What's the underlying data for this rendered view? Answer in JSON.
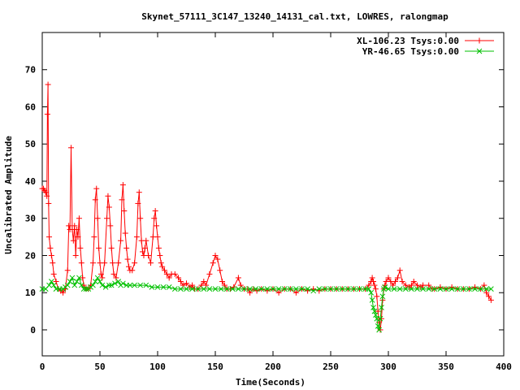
{
  "chart_data": {
    "type": "line",
    "title": "Skynet_57111_3C147_13240_14131_cal.txt, LOWRES, ralongmap",
    "xlabel": "Time(Seconds)",
    "ylabel": "Uncalibrated Amplitude",
    "xlim": [
      0,
      400
    ],
    "ylim": [
      -7,
      80
    ],
    "xticks": [
      0,
      50,
      100,
      150,
      200,
      250,
      300,
      350,
      400
    ],
    "yticks": [
      0,
      10,
      20,
      30,
      40,
      50,
      60,
      70
    ],
    "grid": false,
    "legend_position": "top-right",
    "series": [
      {
        "name": "XL-106.23 Tsys:0.00",
        "color": "#ff0000",
        "marker": "plus",
        "points": [
          [
            0,
            38
          ],
          [
            1,
            38
          ],
          [
            2,
            37.5
          ],
          [
            3,
            37
          ],
          [
            4,
            36
          ],
          [
            4.5,
            58
          ],
          [
            5,
            66
          ],
          [
            5.5,
            34
          ],
          [
            6,
            25
          ],
          [
            7,
            22
          ],
          [
            8,
            20
          ],
          [
            9,
            18
          ],
          [
            10,
            15
          ],
          [
            12,
            13
          ],
          [
            14,
            11
          ],
          [
            16,
            10.5
          ],
          [
            18,
            10
          ],
          [
            20,
            11
          ],
          [
            22,
            16
          ],
          [
            23,
            28
          ],
          [
            24,
            27
          ],
          [
            25,
            49
          ],
          [
            26,
            27
          ],
          [
            27,
            24
          ],
          [
            28,
            28
          ],
          [
            29,
            20
          ],
          [
            30,
            27
          ],
          [
            31,
            25
          ],
          [
            32,
            30
          ],
          [
            33,
            22
          ],
          [
            34,
            18
          ],
          [
            35,
            14
          ],
          [
            36,
            12
          ],
          [
            38,
            11
          ],
          [
            40,
            11
          ],
          [
            42,
            12
          ],
          [
            44,
            18
          ],
          [
            45,
            25
          ],
          [
            46,
            35
          ],
          [
            47,
            38
          ],
          [
            48,
            30
          ],
          [
            49,
            22
          ],
          [
            50,
            18
          ],
          [
            51,
            15
          ],
          [
            52,
            14
          ],
          [
            54,
            18
          ],
          [
            56,
            30
          ],
          [
            57,
            36
          ],
          [
            58,
            33
          ],
          [
            59,
            28
          ],
          [
            60,
            22
          ],
          [
            61,
            18
          ],
          [
            62,
            15
          ],
          [
            64,
            14
          ],
          [
            66,
            18
          ],
          [
            68,
            24
          ],
          [
            69,
            35
          ],
          [
            70,
            39
          ],
          [
            71,
            32
          ],
          [
            72,
            26
          ],
          [
            73,
            22
          ],
          [
            74,
            19
          ],
          [
            75,
            17
          ],
          [
            76,
            16
          ],
          [
            78,
            16
          ],
          [
            80,
            18
          ],
          [
            82,
            25
          ],
          [
            83,
            34
          ],
          [
            84,
            37
          ],
          [
            85,
            30
          ],
          [
            86,
            24
          ],
          [
            87,
            21
          ],
          [
            88,
            20
          ],
          [
            89,
            22
          ],
          [
            90,
            24
          ],
          [
            92,
            20
          ],
          [
            94,
            18
          ],
          [
            96,
            25
          ],
          [
            97,
            30
          ],
          [
            98,
            32
          ],
          [
            99,
            28
          ],
          [
            100,
            25
          ],
          [
            101,
            22
          ],
          [
            102,
            20
          ],
          [
            103,
            18
          ],
          [
            104,
            17
          ],
          [
            106,
            16
          ],
          [
            108,
            15
          ],
          [
            110,
            14
          ],
          [
            112,
            15
          ],
          [
            115,
            15
          ],
          [
            118,
            14
          ],
          [
            120,
            13
          ],
          [
            122,
            12
          ],
          [
            125,
            12.5
          ],
          [
            128,
            11.5
          ],
          [
            130,
            12
          ],
          [
            132,
            11
          ],
          [
            135,
            11
          ],
          [
            138,
            12
          ],
          [
            140,
            13
          ],
          [
            142,
            12
          ],
          [
            145,
            15
          ],
          [
            148,
            18
          ],
          [
            150,
            20
          ],
          [
            152,
            19
          ],
          [
            154,
            16
          ],
          [
            156,
            13
          ],
          [
            158,
            12
          ],
          [
            160,
            11
          ],
          [
            163,
            11
          ],
          [
            166,
            11.5
          ],
          [
            170,
            14
          ],
          [
            172,
            12
          ],
          [
            175,
            11
          ],
          [
            178,
            11
          ],
          [
            180,
            10
          ],
          [
            183,
            11
          ],
          [
            186,
            10.5
          ],
          [
            190,
            11
          ],
          [
            195,
            10.5
          ],
          [
            200,
            11
          ],
          [
            205,
            10
          ],
          [
            210,
            11
          ],
          [
            215,
            11
          ],
          [
            220,
            10
          ],
          [
            225,
            11
          ],
          [
            230,
            10.5
          ],
          [
            235,
            11
          ],
          [
            240,
            10.5
          ],
          [
            245,
            11
          ],
          [
            250,
            11
          ],
          [
            255,
            11
          ],
          [
            260,
            11
          ],
          [
            265,
            11
          ],
          [
            270,
            11
          ],
          [
            275,
            11
          ],
          [
            280,
            11
          ],
          [
            283,
            12
          ],
          [
            285,
            13
          ],
          [
            286,
            14
          ],
          [
            287,
            13
          ],
          [
            288,
            12
          ],
          [
            289,
            11
          ],
          [
            290,
            9
          ],
          [
            291,
            5
          ],
          [
            292,
            2
          ],
          [
            293,
            0
          ],
          [
            294,
            3
          ],
          [
            295,
            8
          ],
          [
            296,
            11
          ],
          [
            297,
            12
          ],
          [
            298,
            13
          ],
          [
            300,
            14
          ],
          [
            302,
            13
          ],
          [
            304,
            12
          ],
          [
            306,
            13
          ],
          [
            308,
            14
          ],
          [
            310,
            16
          ],
          [
            312,
            13
          ],
          [
            315,
            12
          ],
          [
            318,
            11.5
          ],
          [
            320,
            12
          ],
          [
            322,
            13
          ],
          [
            325,
            12
          ],
          [
            328,
            11.5
          ],
          [
            330,
            12
          ],
          [
            335,
            12
          ],
          [
            338,
            11
          ],
          [
            340,
            11
          ],
          [
            345,
            11.5
          ],
          [
            350,
            11
          ],
          [
            355,
            11.5
          ],
          [
            360,
            11
          ],
          [
            365,
            11
          ],
          [
            370,
            11
          ],
          [
            375,
            11.5
          ],
          [
            380,
            11
          ],
          [
            383,
            12
          ],
          [
            385,
            10
          ],
          [
            387,
            9
          ],
          [
            389,
            8
          ]
        ]
      },
      {
        "name": "YR-46.65 Tsys:0.00",
        "color": "#00c000",
        "marker": "cross",
        "points": [
          [
            0,
            11
          ],
          [
            3,
            11
          ],
          [
            6,
            12
          ],
          [
            8,
            13
          ],
          [
            10,
            12
          ],
          [
            12,
            11
          ],
          [
            15,
            11
          ],
          [
            18,
            11
          ],
          [
            20,
            11.5
          ],
          [
            22,
            12
          ],
          [
            24,
            13
          ],
          [
            26,
            14
          ],
          [
            28,
            12
          ],
          [
            30,
            13
          ],
          [
            32,
            14
          ],
          [
            34,
            12
          ],
          [
            36,
            11
          ],
          [
            38,
            11
          ],
          [
            40,
            11
          ],
          [
            42,
            11.5
          ],
          [
            44,
            12
          ],
          [
            46,
            13
          ],
          [
            48,
            14
          ],
          [
            50,
            13
          ],
          [
            52,
            12
          ],
          [
            55,
            11.5
          ],
          [
            58,
            12
          ],
          [
            60,
            12
          ],
          [
            63,
            12.5
          ],
          [
            66,
            13
          ],
          [
            68,
            12
          ],
          [
            70,
            12.5
          ],
          [
            73,
            12
          ],
          [
            76,
            12
          ],
          [
            80,
            12
          ],
          [
            85,
            12
          ],
          [
            90,
            12
          ],
          [
            95,
            11.5
          ],
          [
            100,
            11.5
          ],
          [
            105,
            11.5
          ],
          [
            110,
            11.5
          ],
          [
            115,
            11
          ],
          [
            120,
            11
          ],
          [
            125,
            11
          ],
          [
            130,
            11
          ],
          [
            135,
            11
          ],
          [
            140,
            11
          ],
          [
            145,
            11
          ],
          [
            150,
            11
          ],
          [
            155,
            11
          ],
          [
            160,
            11
          ],
          [
            165,
            11
          ],
          [
            170,
            11
          ],
          [
            175,
            11
          ],
          [
            180,
            11
          ],
          [
            185,
            11
          ],
          [
            190,
            11
          ],
          [
            195,
            11
          ],
          [
            200,
            11
          ],
          [
            205,
            11
          ],
          [
            210,
            11
          ],
          [
            215,
            11
          ],
          [
            220,
            11
          ],
          [
            225,
            11
          ],
          [
            230,
            11
          ],
          [
            235,
            10.5
          ],
          [
            240,
            11
          ],
          [
            245,
            11
          ],
          [
            250,
            11
          ],
          [
            255,
            11
          ],
          [
            260,
            11
          ],
          [
            265,
            11
          ],
          [
            270,
            11
          ],
          [
            275,
            11
          ],
          [
            280,
            11
          ],
          [
            283,
            11
          ],
          [
            285,
            10
          ],
          [
            286,
            8
          ],
          [
            287,
            6
          ],
          [
            288,
            5
          ],
          [
            289,
            4
          ],
          [
            290,
            3
          ],
          [
            291,
            1
          ],
          [
            292,
            0
          ],
          [
            293,
            3
          ],
          [
            294,
            6
          ],
          [
            295,
            9
          ],
          [
            296,
            11
          ],
          [
            297,
            11.5
          ],
          [
            300,
            11
          ],
          [
            305,
            11
          ],
          [
            310,
            11
          ],
          [
            315,
            11
          ],
          [
            320,
            11
          ],
          [
            325,
            11
          ],
          [
            330,
            11
          ],
          [
            335,
            11
          ],
          [
            340,
            11
          ],
          [
            345,
            11
          ],
          [
            350,
            11
          ],
          [
            355,
            11
          ],
          [
            360,
            11
          ],
          [
            365,
            11
          ],
          [
            370,
            11
          ],
          [
            375,
            11
          ],
          [
            380,
            11
          ],
          [
            385,
            11
          ],
          [
            389,
            11
          ]
        ]
      }
    ]
  }
}
